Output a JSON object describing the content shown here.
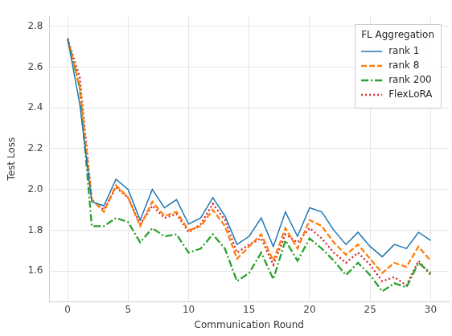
{
  "chart_data": {
    "type": "line",
    "x_label": "Communication Round",
    "y_label": "Test Loss",
    "x": [
      0,
      1,
      2,
      3,
      4,
      5,
      6,
      7,
      8,
      9,
      10,
      11,
      12,
      13,
      14,
      15,
      16,
      17,
      18,
      19,
      20,
      21,
      22,
      23,
      24,
      25,
      26,
      27,
      28,
      29,
      30
    ],
    "series": [
      {
        "name": "rank 1",
        "color": "#1f77b4",
        "line_style": "solid",
        "values": [
          2.74,
          2.42,
          1.94,
          1.92,
          2.05,
          2.0,
          1.85,
          2.0,
          1.91,
          1.95,
          1.83,
          1.86,
          1.96,
          1.87,
          1.73,
          1.77,
          1.86,
          1.72,
          1.89,
          1.77,
          1.91,
          1.89,
          1.8,
          1.73,
          1.79,
          1.72,
          1.67,
          1.73,
          1.71,
          1.79,
          1.75
        ]
      },
      {
        "name": "rank 8",
        "color": "#ff7f0e",
        "line_style": "dashed",
        "values": [
          2.74,
          2.5,
          1.95,
          1.89,
          2.02,
          1.96,
          1.82,
          1.94,
          1.87,
          1.89,
          1.8,
          1.82,
          1.9,
          1.82,
          1.66,
          1.72,
          1.78,
          1.65,
          1.81,
          1.71,
          1.85,
          1.82,
          1.74,
          1.68,
          1.73,
          1.66,
          1.59,
          1.64,
          1.62,
          1.72,
          1.65
        ]
      },
      {
        "name": "rank 200",
        "color": "#2ca02c",
        "line_style": "dashdot",
        "values": [
          2.74,
          2.5,
          1.82,
          1.82,
          1.86,
          1.84,
          1.74,
          1.81,
          1.77,
          1.78,
          1.69,
          1.71,
          1.78,
          1.71,
          1.55,
          1.59,
          1.69,
          1.56,
          1.75,
          1.65,
          1.76,
          1.71,
          1.65,
          1.58,
          1.64,
          1.58,
          1.5,
          1.54,
          1.52,
          1.64,
          1.59
        ]
      },
      {
        "name": "FlexLoRA",
        "color": "#d62728",
        "line_style": "dotted",
        "values": [
          2.74,
          2.55,
          1.95,
          1.9,
          2.01,
          1.96,
          1.83,
          1.92,
          1.86,
          1.88,
          1.79,
          1.83,
          1.93,
          1.85,
          1.69,
          1.73,
          1.76,
          1.63,
          1.78,
          1.74,
          1.81,
          1.76,
          1.69,
          1.64,
          1.69,
          1.63,
          1.55,
          1.57,
          1.53,
          1.65,
          1.58
        ]
      }
    ],
    "xlim": [
      -1.5,
      31.5
    ],
    "xticks": [
      0,
      5,
      10,
      15,
      20,
      25,
      30
    ],
    "ylim": [
      1.45,
      2.85
    ],
    "yticks": [
      1.6,
      1.8,
      {
        "value": 2,
        "label": "2.0"
      },
      2.2,
      2.4,
      2.6,
      2.8
    ],
    "grid": true,
    "legend": "upper right",
    "legend_title": "FL Aggregation"
  }
}
